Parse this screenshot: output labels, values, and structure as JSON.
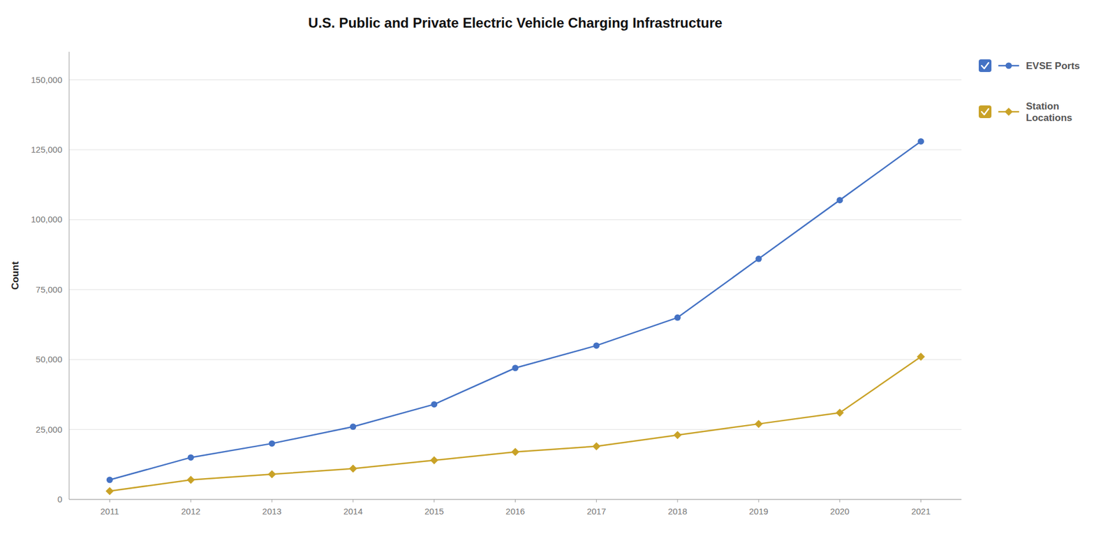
{
  "chart_data": {
    "type": "line",
    "title": "U.S. Public and Private Electric Vehicle Charging Infrastructure",
    "y_label": "Count",
    "x": [
      2011,
      2012,
      2013,
      2014,
      2015,
      2016,
      2017,
      2018,
      2019,
      2020,
      2021
    ],
    "series": [
      {
        "name": "EVSE Ports",
        "color": "#4472C4",
        "marker": "circle",
        "values": [
          7000,
          15000,
          20000,
          26000,
          34000,
          47000,
          55000,
          65000,
          86000,
          107000,
          128000
        ]
      },
      {
        "name": "Station\nLocations",
        "color": "#C9A227",
        "marker": "diamond",
        "values": [
          3000,
          7000,
          9000,
          11000,
          14000,
          17000,
          19000,
          23000,
          27000,
          31000,
          51000
        ]
      }
    ],
    "xlim": [
      2010.5,
      2021.5
    ],
    "xticks": [
      2011,
      2012,
      2013,
      2014,
      2015,
      2016,
      2017,
      2018,
      2019,
      2020,
      2021
    ],
    "ylim": [
      0,
      160000
    ],
    "yticks": [
      0,
      {
        "value": 25000,
        "label": "25,000"
      },
      {
        "value": 50000,
        "label": "50,000"
      },
      {
        "value": 75000,
        "label": "75,000"
      },
      {
        "value": 100000,
        "label": "100,000"
      },
      {
        "value": 125000,
        "label": "125,000"
      },
      {
        "value": 150000,
        "label": "150,000"
      }
    ],
    "grid": true,
    "legend": "upper right"
  }
}
